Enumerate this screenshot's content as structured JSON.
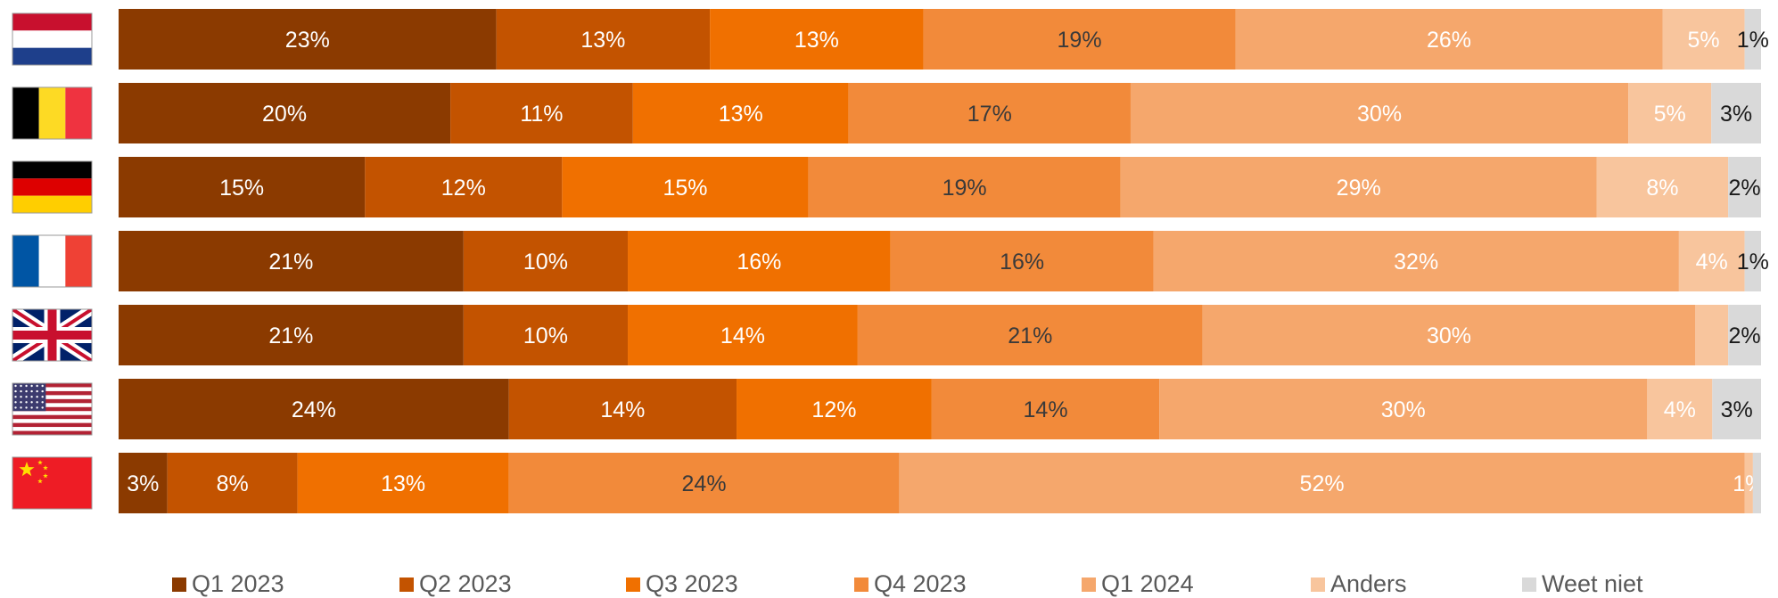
{
  "chart_data": {
    "type": "bar",
    "orientation": "horizontal",
    "stacked": true,
    "normalized_percent": true,
    "categories": [
      "Nederland",
      "België",
      "Duitsland",
      "Frankrijk",
      "Verenigd Koninkrijk",
      "Verenigde Staten",
      "China"
    ],
    "category_flags": [
      "netherlands-flag",
      "belgium-flag",
      "germany-flag",
      "france-flag",
      "united-kingdom-flag",
      "united-states-flag",
      "china-flag"
    ],
    "series": [
      {
        "name": "Q1 2023",
        "color": "#8B3A00",
        "label_color": "#ffffff",
        "values": [
          23,
          20,
          15,
          21,
          21,
          24,
          3
        ]
      },
      {
        "name": "Q2 2023",
        "color": "#C35300",
        "label_color": "#ffffff",
        "values": [
          13,
          11,
          12,
          10,
          10,
          14,
          8
        ]
      },
      {
        "name": "Q3 2023",
        "color": "#F07000",
        "label_color": "#ffffff",
        "values": [
          13,
          13,
          15,
          16,
          14,
          12,
          13
        ]
      },
      {
        "name": "Q4 2023",
        "color": "#F28A3A",
        "label_color": "#3a3a3a",
        "values": [
          19,
          17,
          19,
          16,
          21,
          14,
          24
        ]
      },
      {
        "name": "Q1 2024",
        "color": "#F5A76C",
        "label_color": "#ffffff",
        "values": [
          26,
          30,
          29,
          32,
          30,
          30,
          52
        ]
      },
      {
        "name": "Anders",
        "color": "#F8C59D",
        "label_color": "#ffffff",
        "values": [
          5,
          5,
          8,
          4,
          2,
          4,
          0.5
        ]
      },
      {
        "name": "Weet niet",
        "color": "#D9D9D9",
        "label_color": "#1a1a1a",
        "values": [
          1,
          3,
          2,
          1,
          2,
          3,
          0.5
        ]
      }
    ],
    "data_labels": [
      [
        "23%",
        "13%",
        "13%",
        "19%",
        "26%",
        "5%",
        "1%"
      ],
      [
        "20%",
        "11%",
        "13%",
        "17%",
        "30%",
        "5%",
        "3%"
      ],
      [
        "15%",
        "12%",
        "15%",
        "19%",
        "29%",
        "8%",
        "2%"
      ],
      [
        "21%",
        "10%",
        "16%",
        "16%",
        "32%",
        "4%",
        "1%"
      ],
      [
        "21%",
        "10%",
        "14%",
        "21%",
        "30%",
        "",
        "2%"
      ],
      [
        "24%",
        "14%",
        "12%",
        "14%",
        "30%",
        "4%",
        "3%"
      ],
      [
        "3%",
        "8%",
        "13%",
        "24%",
        "52%",
        "1%",
        ""
      ]
    ],
    "xlim": [
      0,
      100
    ],
    "legend_position": "bottom"
  }
}
